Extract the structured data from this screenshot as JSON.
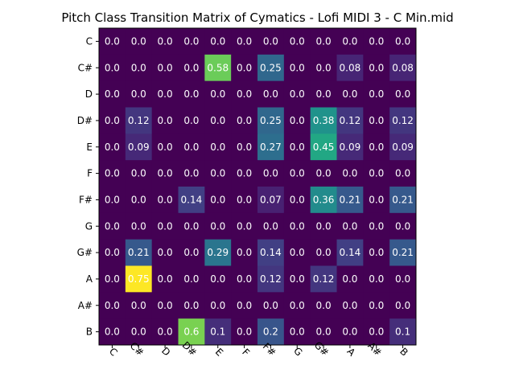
{
  "chart_data": {
    "type": "heatmap",
    "title": "Pitch Class Transition Matrix of Cymatics - Lofi MIDI 3 - C Min.mid",
    "xlabel": "",
    "ylabel": "",
    "x_categories": [
      "C",
      "C#",
      "D",
      "D#",
      "E",
      "F",
      "F#",
      "G",
      "G#",
      "A",
      "A#",
      "B"
    ],
    "y_categories": [
      "C",
      "C#",
      "D",
      "D#",
      "E",
      "F",
      "F#",
      "G",
      "G#",
      "A",
      "A#",
      "B"
    ],
    "values": [
      [
        0.0,
        0.0,
        0.0,
        0.0,
        0.0,
        0.0,
        0.0,
        0.0,
        0.0,
        0.0,
        0.0,
        0.0
      ],
      [
        0.0,
        0.0,
        0.0,
        0.0,
        0.58,
        0.0,
        0.25,
        0.0,
        0.0,
        0.08,
        0.0,
        0.08
      ],
      [
        0.0,
        0.0,
        0.0,
        0.0,
        0.0,
        0.0,
        0.0,
        0.0,
        0.0,
        0.0,
        0.0,
        0.0
      ],
      [
        0.0,
        0.12,
        0.0,
        0.0,
        0.0,
        0.0,
        0.25,
        0.0,
        0.38,
        0.12,
        0.0,
        0.12
      ],
      [
        0.0,
        0.09,
        0.0,
        0.0,
        0.0,
        0.0,
        0.27,
        0.0,
        0.45,
        0.09,
        0.0,
        0.09
      ],
      [
        0.0,
        0.0,
        0.0,
        0.0,
        0.0,
        0.0,
        0.0,
        0.0,
        0.0,
        0.0,
        0.0,
        0.0
      ],
      [
        0.0,
        0.0,
        0.0,
        0.14,
        0.0,
        0.0,
        0.07,
        0.0,
        0.36,
        0.21,
        0.0,
        0.21
      ],
      [
        0.0,
        0.0,
        0.0,
        0.0,
        0.0,
        0.0,
        0.0,
        0.0,
        0.0,
        0.0,
        0.0,
        0.0
      ],
      [
        0.0,
        0.21,
        0.0,
        0.0,
        0.29,
        0.0,
        0.14,
        0.0,
        0.0,
        0.14,
        0.0,
        0.21
      ],
      [
        0.0,
        0.75,
        0.0,
        0.0,
        0.0,
        0.0,
        0.12,
        0.0,
        0.12,
        0.0,
        0.0,
        0.0
      ],
      [
        0.0,
        0.0,
        0.0,
        0.0,
        0.0,
        0.0,
        0.0,
        0.0,
        0.0,
        0.0,
        0.0,
        0.0
      ],
      [
        0.0,
        0.0,
        0.0,
        0.6,
        0.1,
        0.0,
        0.2,
        0.0,
        0.0,
        0.0,
        0.0,
        0.1
      ]
    ],
    "value_labels": [
      [
        "0.0",
        "0.0",
        "0.0",
        "0.0",
        "0.0",
        "0.0",
        "0.0",
        "0.0",
        "0.0",
        "0.0",
        "0.0",
        "0.0"
      ],
      [
        "0.0",
        "0.0",
        "0.0",
        "0.0",
        "0.58",
        "0.0",
        "0.25",
        "0.0",
        "0.0",
        "0.08",
        "0.0",
        "0.08"
      ],
      [
        "0.0",
        "0.0",
        "0.0",
        "0.0",
        "0.0",
        "0.0",
        "0.0",
        "0.0",
        "0.0",
        "0.0",
        "0.0",
        "0.0"
      ],
      [
        "0.0",
        "0.12",
        "0.0",
        "0.0",
        "0.0",
        "0.0",
        "0.25",
        "0.0",
        "0.38",
        "0.12",
        "0.0",
        "0.12"
      ],
      [
        "0.0",
        "0.09",
        "0.0",
        "0.0",
        "0.0",
        "0.0",
        "0.27",
        "0.0",
        "0.45",
        "0.09",
        "0.0",
        "0.09"
      ],
      [
        "0.0",
        "0.0",
        "0.0",
        "0.0",
        "0.0",
        "0.0",
        "0.0",
        "0.0",
        "0.0",
        "0.0",
        "0.0",
        "0.0"
      ],
      [
        "0.0",
        "0.0",
        "0.0",
        "0.14",
        "0.0",
        "0.0",
        "0.07",
        "0.0",
        "0.36",
        "0.21",
        "0.0",
        "0.21"
      ],
      [
        "0.0",
        "0.0",
        "0.0",
        "0.0",
        "0.0",
        "0.0",
        "0.0",
        "0.0",
        "0.0",
        "0.0",
        "0.0",
        "0.0"
      ],
      [
        "0.0",
        "0.21",
        "0.0",
        "0.0",
        "0.29",
        "0.0",
        "0.14",
        "0.0",
        "0.0",
        "0.14",
        "0.0",
        "0.21"
      ],
      [
        "0.0",
        "0.75",
        "0.0",
        "0.0",
        "0.0",
        "0.0",
        "0.12",
        "0.0",
        "0.12",
        "0.0",
        "0.0",
        "0.0"
      ],
      [
        "0.0",
        "0.0",
        "0.0",
        "0.0",
        "0.0",
        "0.0",
        "0.0",
        "0.0",
        "0.0",
        "0.0",
        "0.0",
        "0.0"
      ],
      [
        "0.0",
        "0.0",
        "0.0",
        "0.6",
        "0.1",
        "0.0",
        "0.2",
        "0.0",
        "0.0",
        "0.0",
        "0.0",
        "0.1"
      ]
    ],
    "colormap": "viridis",
    "vmin": 0.0,
    "vmax": 0.75,
    "grid": false,
    "x_tick_rotation_deg": 45
  }
}
